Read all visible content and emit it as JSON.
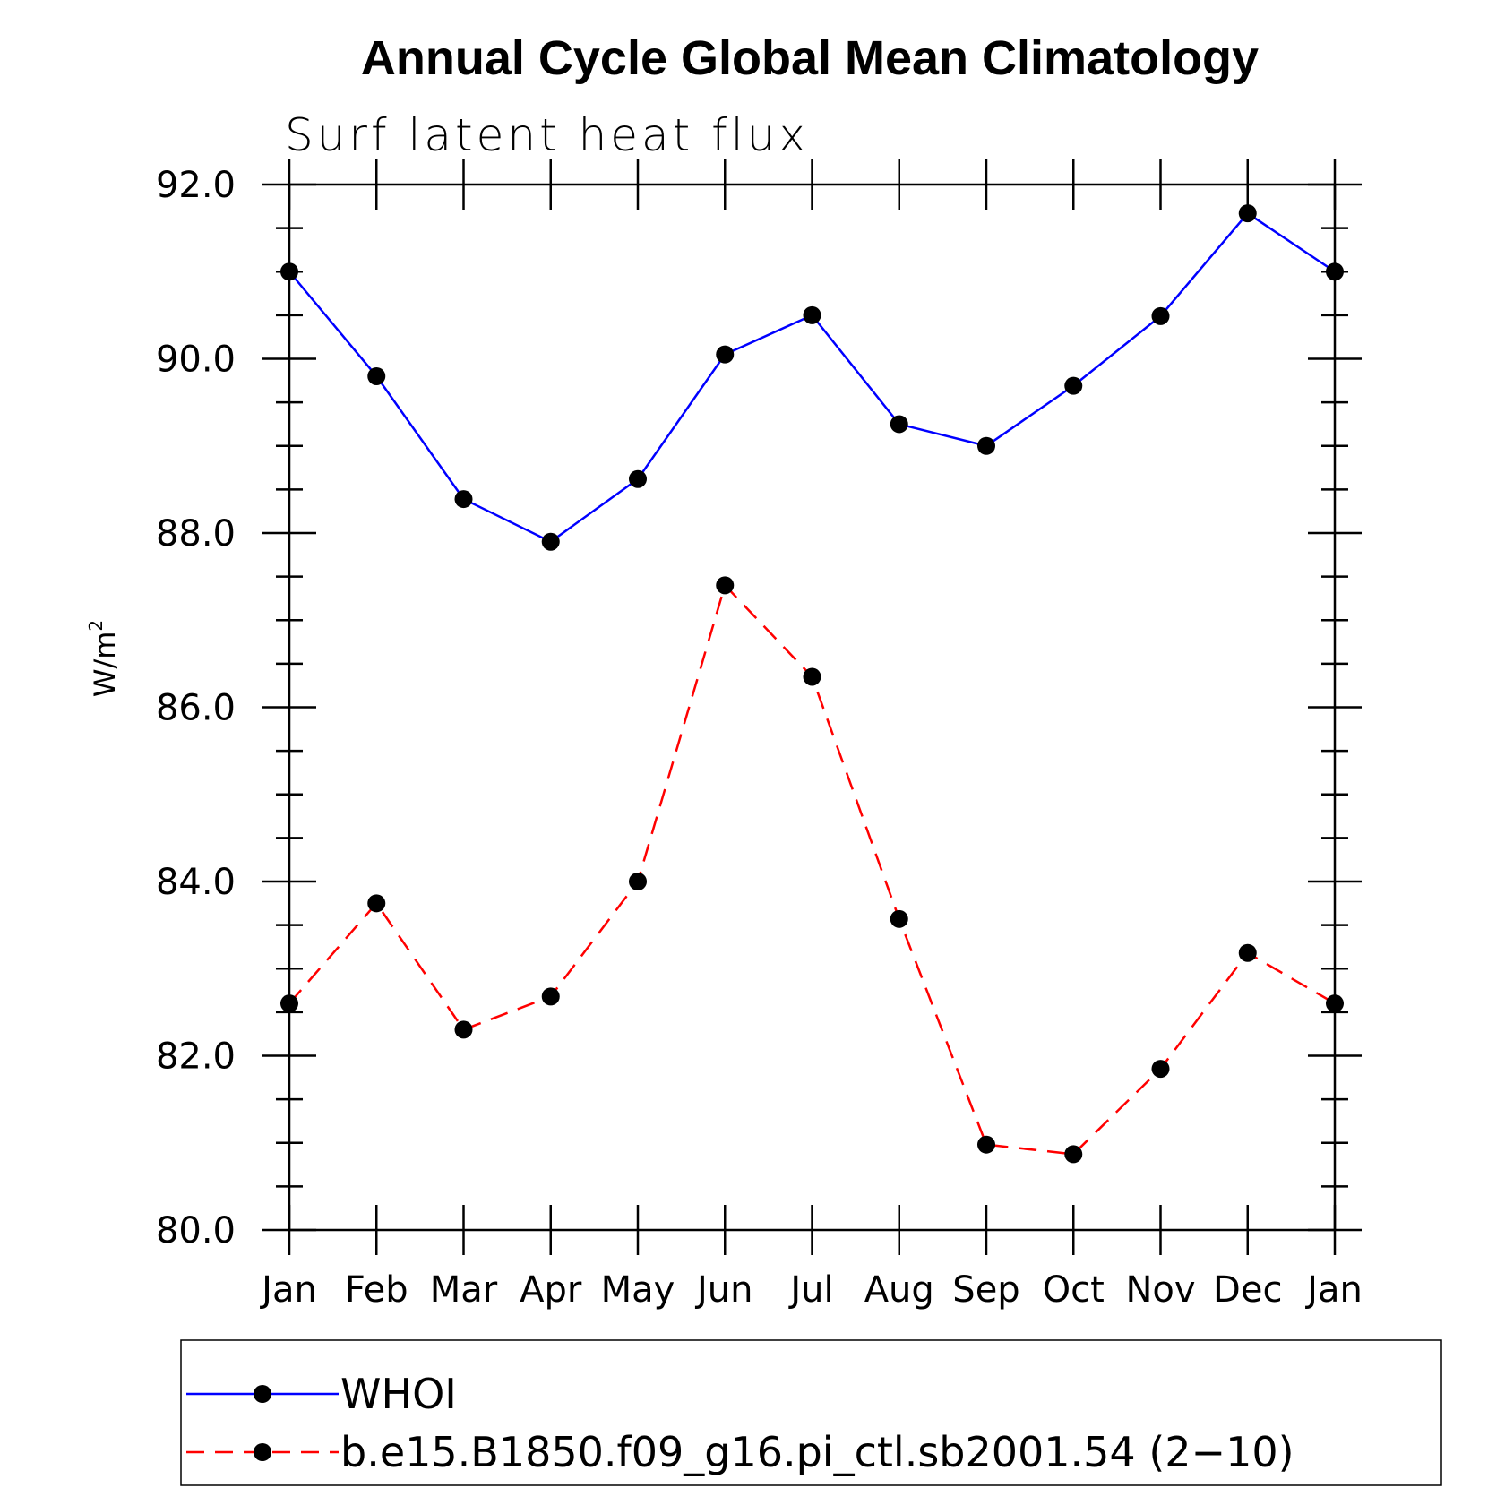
{
  "chart_data": {
    "type": "line",
    "title": "Annual Cycle Global Mean Climatology",
    "subtitle": "Surf latent heat flux",
    "xlabel": "",
    "ylabel": "W/m",
    "ylabel_superscript": "2",
    "categories": [
      "Jan",
      "Feb",
      "Mar",
      "Apr",
      "May",
      "Jun",
      "Jul",
      "Aug",
      "Sep",
      "Oct",
      "Nov",
      "Dec",
      "Jan"
    ],
    "ylim": [
      80,
      92
    ],
    "yticks": [
      "80.0",
      "82.0",
      "84.0",
      "86.0",
      "88.0",
      "90.0",
      "92.0"
    ],
    "grid": false,
    "legend_position": "bottom",
    "series": [
      {
        "name": "WHOI",
        "color": "#0000ff",
        "dashed": false,
        "values": [
          91.0,
          89.8,
          88.39,
          87.9,
          88.62,
          90.05,
          90.5,
          89.25,
          89.0,
          89.69,
          90.49,
          91.67,
          91.0
        ]
      },
      {
        "name": "b.e15.B1850.f09_g16.pi_ctl.sb2001.54 (2−10)",
        "color": "#ff0000",
        "dashed": true,
        "values": [
          82.6,
          83.75,
          82.3,
          82.68,
          84.0,
          87.4,
          86.35,
          83.57,
          80.98,
          80.87,
          81.85,
          83.18,
          82.6
        ]
      }
    ]
  }
}
